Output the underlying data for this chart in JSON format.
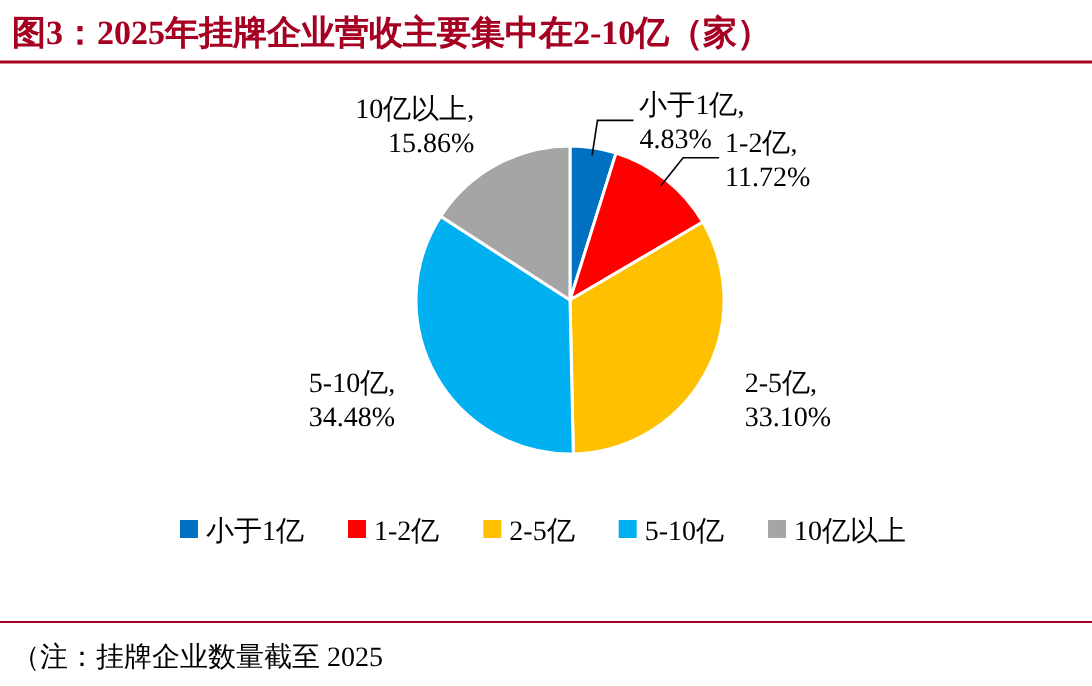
{
  "chart_data": {
    "type": "pie",
    "title": "图3：2025年挂牌企业营收主要集中在2-10亿（家）",
    "categories": [
      "小于1亿",
      "1-2亿",
      "2-5亿",
      "5-10亿",
      "10亿以上"
    ],
    "values": [
      4.83,
      11.72,
      33.1,
      34.48,
      15.86
    ],
    "colors": [
      "#0070c0",
      "#ff0000",
      "#ffc000",
      "#00b0f0",
      "#a5a5a5"
    ],
    "value_labels": [
      "小于1亿,4.83%",
      "1-2亿,11.72%",
      "2-5亿,33.10%",
      "5-10亿,34.48%",
      "10亿以上,15.86%"
    ],
    "legend": "bottom",
    "annotations": [
      "（注：挂牌企业数量截至 2025"
    ]
  }
}
